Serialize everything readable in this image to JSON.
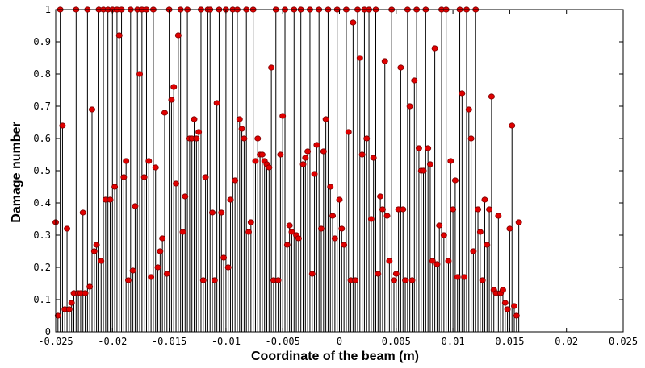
{
  "chart_data": {
    "type": "stem",
    "title": "",
    "xlabel": "Coordinate of the beam (m)",
    "ylabel": "Damage number",
    "xlim": [
      -0.025,
      0.025
    ],
    "ylim": [
      0,
      1
    ],
    "x_ticks": [
      -0.025,
      -0.02,
      -0.015,
      -0.01,
      -0.005,
      0,
      0.005,
      0.01,
      0.015,
      0.02,
      0.025
    ],
    "x_tick_labels": [
      "-0.025",
      "-0.02",
      "-0.015",
      "-0.01",
      "-0.005",
      "0",
      "0.005",
      "0.01",
      "0.015",
      "0.02",
      "0.025"
    ],
    "y_ticks": [
      0,
      0.1,
      0.2,
      0.3,
      0.4,
      0.5,
      0.6,
      0.7,
      0.8,
      0.9,
      1
    ],
    "y_tick_labels": [
      "0",
      "0.1",
      "0.2",
      "0.3",
      "0.4",
      "0.5",
      "0.6",
      "0.7",
      "0.8",
      "0.9",
      "1"
    ],
    "grid": false,
    "stem_color": "#000000",
    "marker_color": "#e00000",
    "marker_edge_color": "#7a0000",
    "x_start": -0.025,
    "x_step": 0.0002,
    "values": [
      0.34,
      0.05,
      1,
      0.64,
      0.07,
      0.32,
      0.07,
      0.09,
      0.12,
      1,
      0.12,
      0.12,
      0.37,
      0.12,
      1,
      0.14,
      0.69,
      0.25,
      0.27,
      1,
      0.22,
      1,
      0.41,
      1,
      0.41,
      1,
      0.45,
      1,
      0.92,
      1,
      0.48,
      0.53,
      0.16,
      1,
      0.19,
      0.39,
      1,
      0.8,
      1,
      0.48,
      1,
      0.53,
      0.17,
      1,
      0.51,
      0.2,
      0.25,
      0.29,
      0.68,
      0.18,
      1,
      0.72,
      0.76,
      0.46,
      0.92,
      1,
      0.31,
      0.42,
      1,
      0.6,
      0.6,
      0.66,
      0.6,
      0.62,
      1,
      0.16,
      0.48,
      1,
      1,
      0.37,
      0.16,
      0.71,
      1,
      0.37,
      0.23,
      1,
      0.2,
      0.41,
      1,
      0.47,
      1,
      0.66,
      0.63,
      0.6,
      1,
      0.31,
      0.34,
      1,
      0.53,
      0.6,
      0.55,
      0.55,
      0.53,
      0.52,
      0.51,
      0.82,
      0.16,
      1,
      0.16,
      0.55,
      0.67,
      1,
      0.27,
      0.33,
      0.31,
      1,
      0.3,
      0.29,
      1,
      0.52,
      0.54,
      0.56,
      1,
      0.18,
      0.49,
      0.58,
      1,
      0.32,
      0.56,
      0.66,
      1,
      0.45,
      0.36,
      0.29,
      1,
      0.41,
      0.32,
      0.27,
      1,
      0.62,
      0.16,
      0.96,
      0.16,
      1,
      0.85,
      0.55,
      1,
      0.6,
      1,
      0.35,
      0.54,
      1,
      0.18,
      0.42,
      0.38,
      0.84,
      0.36,
      0.22,
      1,
      0.16,
      0.18,
      0.38,
      0.82,
      0.38,
      0.16,
      1,
      0.7,
      0.16,
      0.78,
      1,
      0.57,
      0.5,
      0.5,
      1,
      0.57,
      0.52,
      0.22,
      0.88,
      0.21,
      0.33,
      1,
      0.3,
      1,
      0.22,
      0.53,
      0.38,
      0.47,
      0.17,
      1,
      0.74,
      0.17,
      1,
      0.69,
      0.6,
      0.25,
      1,
      0.38,
      0.31,
      0.16,
      0.41,
      0.27,
      0.38,
      0.73,
      0.13,
      0.12,
      0.36,
      0.12,
      0.13,
      0.09,
      0.07,
      0.32,
      0.64,
      0.08,
      0.05,
      0.34
    ]
  }
}
